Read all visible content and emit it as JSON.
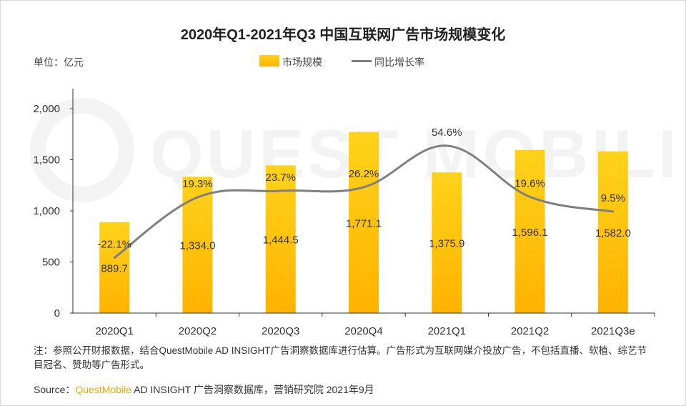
{
  "title": "2020年Q1-2021年Q3 中国互联网广告市场规模变化",
  "unit": "单位：亿元",
  "legend": {
    "bar": "市场规模",
    "line": "同比增长率"
  },
  "colors": {
    "bar_top": "#ffd21a",
    "bar_bottom": "#ffb300",
    "line": "#7f7f7f",
    "axis": "#333333",
    "brand": "#f6a800"
  },
  "chart_data": {
    "type": "bar",
    "categories": [
      "2020Q1",
      "2020Q2",
      "2020Q3",
      "2020Q4",
      "2021Q1",
      "2021Q2",
      "2021Q3e"
    ],
    "series": [
      {
        "name": "市场规模",
        "type": "bar",
        "values": [
          889.7,
          1334.0,
          1444.5,
          1771.1,
          1375.9,
          1596.1,
          1582.0
        ],
        "labels": [
          "889.7",
          "1,334.0",
          "1,444.5",
          "1,771.1",
          "1,375.9",
          "1,596.1",
          "1,582.0"
        ]
      },
      {
        "name": "同比增长率",
        "type": "line",
        "values": [
          -22.1,
          19.3,
          23.7,
          26.2,
          54.6,
          19.6,
          9.5
        ],
        "labels": [
          "-22.1%",
          "19.3%",
          "23.7%",
          "26.2%",
          "54.6%",
          "19.6%",
          "9.5%"
        ]
      }
    ],
    "y_ticks": [
      "0",
      "500",
      "1,000",
      "1,500",
      "2,000"
    ],
    "ylim": [
      0,
      2000
    ],
    "secondary_ylim": [
      -60,
      80
    ],
    "xlabel": "",
    "ylabel": "亿元"
  },
  "note": "注：参照公开财报数据，结合QuestMobile AD INSIGHT广告洞察数据库进行估算。广告形式为互联网媒介投放广告，不包括直播、软植、综艺节目冠名、赞助等广告形式。",
  "source": {
    "prefix": "Source：",
    "brand": "QuestMobile",
    "rest": " AD INSIGHT 广告洞察数据库，营销研究院 2021年9月"
  },
  "watermark": "QUEST MOBILE"
}
